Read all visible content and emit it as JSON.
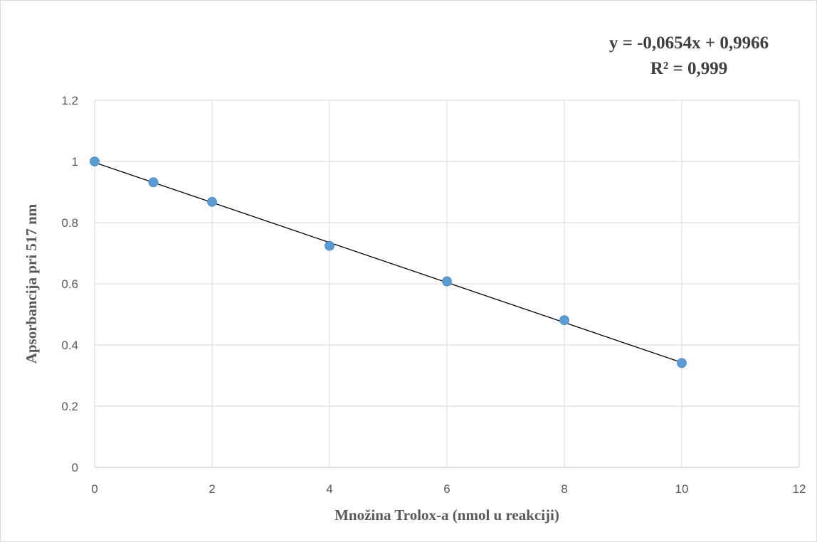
{
  "chart_data": {
    "type": "scatter",
    "xlabel": "Množina Trolox-a (nmol u reakciji)",
    "ylabel": "Apsorbancija pri 517 nm",
    "xlim": [
      0,
      12
    ],
    "ylim": [
      0,
      1.2
    ],
    "x_ticks": [
      "0",
      "2",
      "4",
      "6",
      "8",
      "10",
      "12"
    ],
    "y_ticks": [
      "0",
      "0.2",
      "0.4",
      "0.6",
      "0.8",
      "1",
      "1.2"
    ],
    "grid": true,
    "points": [
      {
        "x": 0,
        "y": 1.0
      },
      {
        "x": 1,
        "y": 0.932
      },
      {
        "x": 2,
        "y": 0.868
      },
      {
        "x": 4,
        "y": 0.724
      },
      {
        "x": 6,
        "y": 0.608
      },
      {
        "x": 8,
        "y": 0.481
      },
      {
        "x": 10,
        "y": 0.341
      }
    ],
    "marker_color": "#5b9bd5",
    "trendline": {
      "slope": -0.0654,
      "intercept": 0.9966,
      "x_range": [
        0,
        10
      ],
      "color": "#000000",
      "equation": "y = -0,0654x + 0,9966",
      "r_squared": "R² = 0,999"
    }
  }
}
